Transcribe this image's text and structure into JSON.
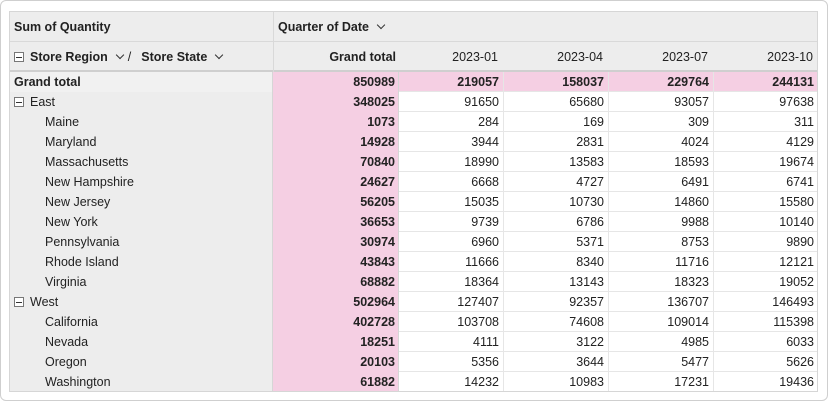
{
  "pivot": {
    "measure_label": "Sum of Quantity",
    "column_field": "Quarter of Date",
    "row_field_1": "Store Region",
    "row_field_2": "Store State",
    "separator": "/",
    "grand_total_header": "Grand total",
    "columns": [
      "2023-01",
      "2023-04",
      "2023-07",
      "2023-10"
    ],
    "grand_total_row": {
      "label": "Grand total",
      "total": "850989",
      "values": [
        "219057",
        "158037",
        "229764",
        "244131"
      ]
    },
    "rows": [
      {
        "label": "East",
        "level": 0,
        "collapsible": true,
        "total": "348025",
        "values": [
          "91650",
          "65680",
          "93057",
          "97638"
        ]
      },
      {
        "label": "Maine",
        "level": 1,
        "total": "1073",
        "values": [
          "284",
          "169",
          "309",
          "311"
        ]
      },
      {
        "label": "Maryland",
        "level": 1,
        "total": "14928",
        "values": [
          "3944",
          "2831",
          "4024",
          "4129"
        ]
      },
      {
        "label": "Massachusetts",
        "level": 1,
        "total": "70840",
        "values": [
          "18990",
          "13583",
          "18593",
          "19674"
        ]
      },
      {
        "label": "New Hampshire",
        "level": 1,
        "total": "24627",
        "values": [
          "6668",
          "4727",
          "6491",
          "6741"
        ]
      },
      {
        "label": "New Jersey",
        "level": 1,
        "total": "56205",
        "values": [
          "15035",
          "10730",
          "14860",
          "15580"
        ]
      },
      {
        "label": "New York",
        "level": 1,
        "total": "36653",
        "values": [
          "9739",
          "6786",
          "9988",
          "10140"
        ]
      },
      {
        "label": "Pennsylvania",
        "level": 1,
        "total": "30974",
        "values": [
          "6960",
          "5371",
          "8753",
          "9890"
        ]
      },
      {
        "label": "Rhode Island",
        "level": 1,
        "total": "43843",
        "values": [
          "11666",
          "8340",
          "11716",
          "12121"
        ]
      },
      {
        "label": "Virginia",
        "level": 1,
        "total": "68882",
        "values": [
          "18364",
          "13143",
          "18323",
          "19052"
        ]
      },
      {
        "label": "West",
        "level": 0,
        "collapsible": true,
        "total": "502964",
        "values": [
          "127407",
          "92357",
          "136707",
          "146493"
        ]
      },
      {
        "label": "California",
        "level": 1,
        "total": "402728",
        "values": [
          "103708",
          "74608",
          "109014",
          "115398"
        ]
      },
      {
        "label": "Nevada",
        "level": 1,
        "total": "18251",
        "values": [
          "4111",
          "3122",
          "4985",
          "6033"
        ]
      },
      {
        "label": "Oregon",
        "level": 1,
        "total": "20103",
        "values": [
          "5356",
          "3644",
          "5477",
          "5626"
        ]
      },
      {
        "label": "Washington",
        "level": 1,
        "total": "61882",
        "values": [
          "14232",
          "10983",
          "17231",
          "19436"
        ]
      }
    ],
    "colors": {
      "grand_total_fill": "#f5cfe3",
      "header_fill": "#ededed"
    }
  }
}
